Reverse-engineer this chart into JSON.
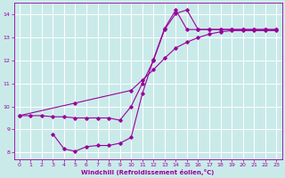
{
  "bg_color": "#caeaea",
  "line_color": "#990099",
  "grid_color": "#ffffff",
  "xlabel": "Windchill (Refroidissement éolien,°C)",
  "ylim": [
    7.7,
    14.5
  ],
  "xlim": [
    -0.5,
    23.5
  ],
  "yticks": [
    8,
    9,
    10,
    11,
    12,
    13,
    14
  ],
  "xticks": [
    0,
    1,
    2,
    3,
    4,
    5,
    6,
    7,
    8,
    9,
    10,
    11,
    12,
    13,
    14,
    15,
    16,
    17,
    18,
    19,
    20,
    21,
    22,
    23
  ],
  "curve1_x": [
    0,
    1,
    2,
    3,
    4,
    5,
    6,
    7,
    8,
    9,
    10,
    11,
    12,
    13,
    14,
    15,
    16,
    17,
    18,
    19,
    20,
    21,
    22,
    23
  ],
  "curve1_y": [
    9.6,
    9.6,
    9.6,
    9.55,
    9.55,
    9.5,
    9.5,
    9.5,
    9.5,
    9.4,
    10.0,
    11.0,
    12.0,
    13.35,
    14.05,
    14.2,
    13.35,
    13.35,
    13.35,
    13.35,
    13.35,
    13.35,
    13.35,
    13.35
  ],
  "curve2_x": [
    0,
    5,
    10,
    11,
    12,
    13,
    14,
    15,
    16,
    17,
    18,
    19,
    20,
    21,
    22,
    23
  ],
  "curve2_y": [
    9.6,
    10.15,
    10.7,
    11.15,
    11.6,
    12.1,
    12.55,
    12.8,
    13.0,
    13.15,
    13.25,
    13.3,
    13.3,
    13.3,
    13.3,
    13.3
  ],
  "curve3_x": [
    3,
    4,
    5,
    6,
    7,
    8,
    9,
    10,
    11,
    12,
    13,
    14,
    15,
    16,
    17,
    18,
    19,
    20,
    21,
    22,
    23
  ],
  "curve3_y": [
    8.8,
    8.15,
    8.05,
    8.25,
    8.3,
    8.3,
    8.4,
    8.65,
    10.55,
    12.05,
    13.4,
    14.2,
    13.35,
    13.35,
    13.35,
    13.35,
    13.35,
    13.35,
    13.35,
    13.35,
    13.35
  ]
}
